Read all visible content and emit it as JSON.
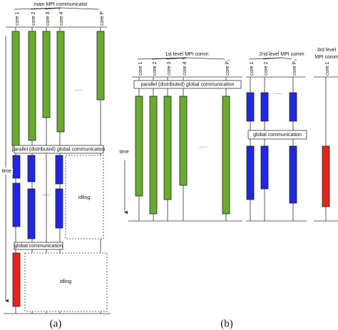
{
  "panel_a": {
    "communicator": "main MPI communicator",
    "cores": [
      "core 1",
      "core 2",
      "core 3",
      "core 4",
      "core P"
    ],
    "dots": "......",
    "dots_2": "......",
    "global_parallel": "parallel (distributed) global communication",
    "global": "global communication",
    "idling": [
      "idling",
      "idling"
    ],
    "time": "time",
    "caption": "(a)"
  },
  "panel_b": {
    "level1": {
      "title": "1st level MPI comm",
      "cores": [
        "core 1",
        "core 2",
        "core 3",
        "core 4",
        "core P₁"
      ],
      "dots": "......",
      "communication": "parallel (distributed) global communication"
    },
    "level2": {
      "title": "2nd level MPI comm",
      "cores": [
        "core 1",
        "core 2",
        "core P₂"
      ],
      "dots": "......",
      "communication": "global communication"
    },
    "level3": {
      "title": [
        "3rd level",
        "MPI comm"
      ],
      "cores": [
        "core 1"
      ]
    },
    "time": "time",
    "caption": "(b)"
  }
}
